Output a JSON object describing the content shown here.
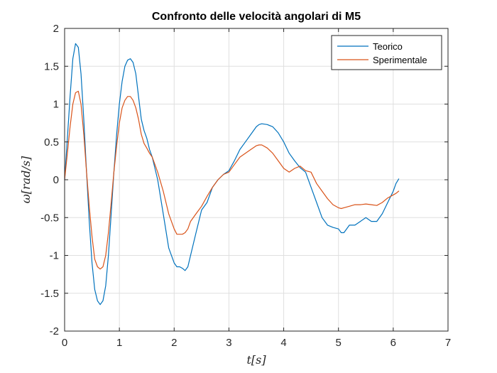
{
  "chart_data": {
    "type": "line",
    "title": "Confronto delle velocità angolari di M5",
    "xlabel": "t[s]",
    "ylabel": "ω[rad/s]",
    "xlim": [
      0,
      7
    ],
    "ylim": [
      -2,
      2
    ],
    "xticks": [
      0,
      1,
      2,
      3,
      4,
      5,
      6,
      7
    ],
    "yticks": [
      -2,
      -1.5,
      -1,
      -0.5,
      0,
      0.5,
      1,
      1.5,
      2
    ],
    "grid": true,
    "box": true,
    "legend": "top-right",
    "series": [
      {
        "name": "Teorico",
        "color": "#0072BD",
        "x": [
          0,
          0.05,
          0.1,
          0.15,
          0.2,
          0.25,
          0.3,
          0.35,
          0.4,
          0.45,
          0.5,
          0.55,
          0.6,
          0.65,
          0.7,
          0.75,
          0.8,
          0.85,
          0.9,
          0.95,
          1.0,
          1.05,
          1.1,
          1.15,
          1.2,
          1.25,
          1.3,
          1.35,
          1.4,
          1.45,
          1.5,
          1.55,
          1.6,
          1.7,
          1.8,
          1.9,
          2.0,
          2.05,
          2.1,
          2.15,
          2.2,
          2.25,
          2.3,
          2.4,
          2.5,
          2.6,
          2.7,
          2.8,
          2.9,
          3.0,
          3.1,
          3.2,
          3.3,
          3.4,
          3.5,
          3.55,
          3.6,
          3.7,
          3.8,
          3.9,
          4.0,
          4.1,
          4.2,
          4.3,
          4.4,
          4.5,
          4.6,
          4.7,
          4.8,
          4.9,
          5.0,
          5.05,
          5.1,
          5.2,
          5.3,
          5.4,
          5.5,
          5.6,
          5.7,
          5.8,
          5.9,
          6.0,
          6.05,
          6.1
        ],
        "y": [
          0,
          0.55,
          1.1,
          1.6,
          1.8,
          1.75,
          1.4,
          0.8,
          0.1,
          -0.55,
          -1.1,
          -1.45,
          -1.6,
          -1.65,
          -1.6,
          -1.4,
          -1.0,
          -0.45,
          0.1,
          0.6,
          1.0,
          1.3,
          1.5,
          1.58,
          1.6,
          1.55,
          1.4,
          1.1,
          0.8,
          0.65,
          0.55,
          0.4,
          0.3,
          0.0,
          -0.45,
          -0.9,
          -1.1,
          -1.15,
          -1.15,
          -1.17,
          -1.2,
          -1.15,
          -1.0,
          -0.7,
          -0.4,
          -0.3,
          -0.1,
          0.0,
          0.07,
          0.12,
          0.25,
          0.4,
          0.5,
          0.6,
          0.7,
          0.73,
          0.74,
          0.73,
          0.7,
          0.62,
          0.5,
          0.35,
          0.25,
          0.16,
          0.1,
          -0.1,
          -0.3,
          -0.5,
          -0.6,
          -0.63,
          -0.65,
          -0.7,
          -0.7,
          -0.6,
          -0.6,
          -0.55,
          -0.5,
          -0.55,
          -0.55,
          -0.45,
          -0.3,
          -0.15,
          -0.05,
          0.01
        ]
      },
      {
        "name": "Sperimentale",
        "color": "#D95319",
        "x": [
          0,
          0.05,
          0.1,
          0.15,
          0.2,
          0.25,
          0.3,
          0.35,
          0.4,
          0.45,
          0.5,
          0.55,
          0.6,
          0.65,
          0.7,
          0.75,
          0.8,
          0.85,
          0.9,
          0.95,
          1.0,
          1.05,
          1.1,
          1.15,
          1.2,
          1.25,
          1.3,
          1.35,
          1.4,
          1.45,
          1.5,
          1.55,
          1.6,
          1.7,
          1.8,
          1.9,
          2.0,
          2.05,
          2.1,
          2.15,
          2.2,
          2.25,
          2.3,
          2.4,
          2.5,
          2.6,
          2.7,
          2.8,
          2.9,
          3.0,
          3.1,
          3.2,
          3.3,
          3.4,
          3.5,
          3.55,
          3.6,
          3.7,
          3.8,
          3.9,
          4.0,
          4.1,
          4.2,
          4.3,
          4.4,
          4.5,
          4.6,
          4.7,
          4.8,
          4.9,
          5.0,
          5.05,
          5.1,
          5.2,
          5.3,
          5.4,
          5.5,
          5.6,
          5.7,
          5.8,
          5.9,
          6.0,
          6.05,
          6.1
        ],
        "y": [
          0,
          0.35,
          0.7,
          1.0,
          1.15,
          1.17,
          1.0,
          0.6,
          0.1,
          -0.35,
          -0.75,
          -1.05,
          -1.15,
          -1.18,
          -1.15,
          -1.0,
          -0.7,
          -0.3,
          0.1,
          0.45,
          0.75,
          0.95,
          1.05,
          1.1,
          1.1,
          1.05,
          0.95,
          0.8,
          0.6,
          0.48,
          0.42,
          0.35,
          0.3,
          0.1,
          -0.15,
          -0.45,
          -0.65,
          -0.72,
          -0.72,
          -0.72,
          -0.7,
          -0.65,
          -0.55,
          -0.45,
          -0.35,
          -0.22,
          -0.1,
          0.0,
          0.07,
          0.1,
          0.2,
          0.3,
          0.35,
          0.4,
          0.45,
          0.46,
          0.46,
          0.42,
          0.35,
          0.25,
          0.15,
          0.1,
          0.15,
          0.18,
          0.12,
          0.1,
          -0.05,
          -0.15,
          -0.25,
          -0.33,
          -0.37,
          -0.38,
          -0.37,
          -0.35,
          -0.33,
          -0.33,
          -0.32,
          -0.33,
          -0.34,
          -0.3,
          -0.24,
          -0.2,
          -0.18,
          -0.15
        ]
      }
    ]
  }
}
